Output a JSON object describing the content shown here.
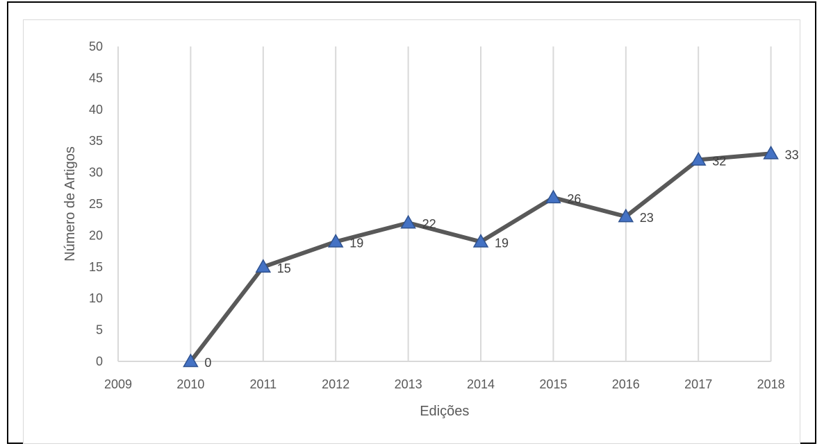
{
  "chart_data": {
    "type": "line",
    "title": "",
    "xlabel": "Edições",
    "ylabel": "Número  de Artigos",
    "categories": [
      "2009",
      "2010",
      "2011",
      "2012",
      "2013",
      "2014",
      "2015",
      "2016",
      "2017",
      "2018"
    ],
    "series": [
      {
        "x": [
          "2010",
          "2011",
          "2012",
          "2013",
          "2014",
          "2015",
          "2016",
          "2017",
          "2018"
        ],
        "values": [
          0,
          15,
          19,
          22,
          19,
          26,
          23,
          32,
          33
        ],
        "labels": [
          "0",
          "15",
          "19",
          "22",
          "19",
          "26",
          "23",
          "32",
          "33"
        ],
        "line_color": "#595959",
        "marker": "triangle",
        "marker_color": "#4472c4",
        "marker_edge_color": "#2f528f"
      }
    ],
    "ylim": [
      0,
      50
    ],
    "yticks": [
      "0",
      "5",
      "10",
      "15",
      "20",
      "25",
      "30",
      "35",
      "40",
      "45",
      "50"
    ],
    "grid": "vertical",
    "grid_color": "#d9d9d9",
    "legend": "none"
  }
}
